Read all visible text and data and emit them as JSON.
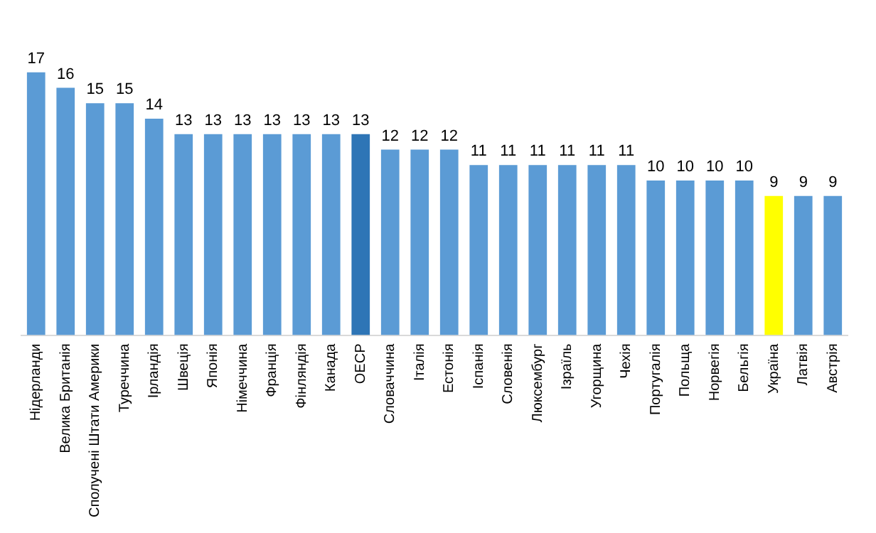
{
  "chart_data": {
    "type": "bar",
    "categories": [
      "Нідерланди",
      "Велика Британія",
      "Сполучені Штати Америки",
      "Туреччина",
      "Ірландія",
      "Швеція",
      "Японія",
      "Німеччина",
      "Франція",
      "Фінляндія",
      "Канада",
      "ОЕСР",
      "Словаччина",
      "Італія",
      "Естонія",
      "Іспанія",
      "Словенія",
      "Люксембург",
      "Ізраїль",
      "Угорщина",
      "Чехія",
      "Португалія",
      "Польща",
      "Норвегія",
      "Бельгія",
      "Україна",
      "Латвія",
      "Австрія"
    ],
    "values": [
      17,
      16,
      15,
      15,
      14,
      13,
      13,
      13,
      13,
      13,
      13,
      13,
      12,
      12,
      12,
      11,
      11,
      11,
      11,
      11,
      11,
      10,
      10,
      10,
      10,
      9,
      9,
      9
    ],
    "colors": [
      "#5b9bd5",
      "#5b9bd5",
      "#5b9bd5",
      "#5b9bd5",
      "#5b9bd5",
      "#5b9bd5",
      "#5b9bd5",
      "#5b9bd5",
      "#5b9bd5",
      "#5b9bd5",
      "#5b9bd5",
      "#2e75b6",
      "#5b9bd5",
      "#5b9bd5",
      "#5b9bd5",
      "#5b9bd5",
      "#5b9bd5",
      "#5b9bd5",
      "#5b9bd5",
      "#5b9bd5",
      "#5b9bd5",
      "#5b9bd5",
      "#5b9bd5",
      "#5b9bd5",
      "#5b9bd5",
      "#ffff00",
      "#5b9bd5",
      "#5b9bd5"
    ],
    "data_labels": true,
    "grid": false,
    "legend": false
  }
}
